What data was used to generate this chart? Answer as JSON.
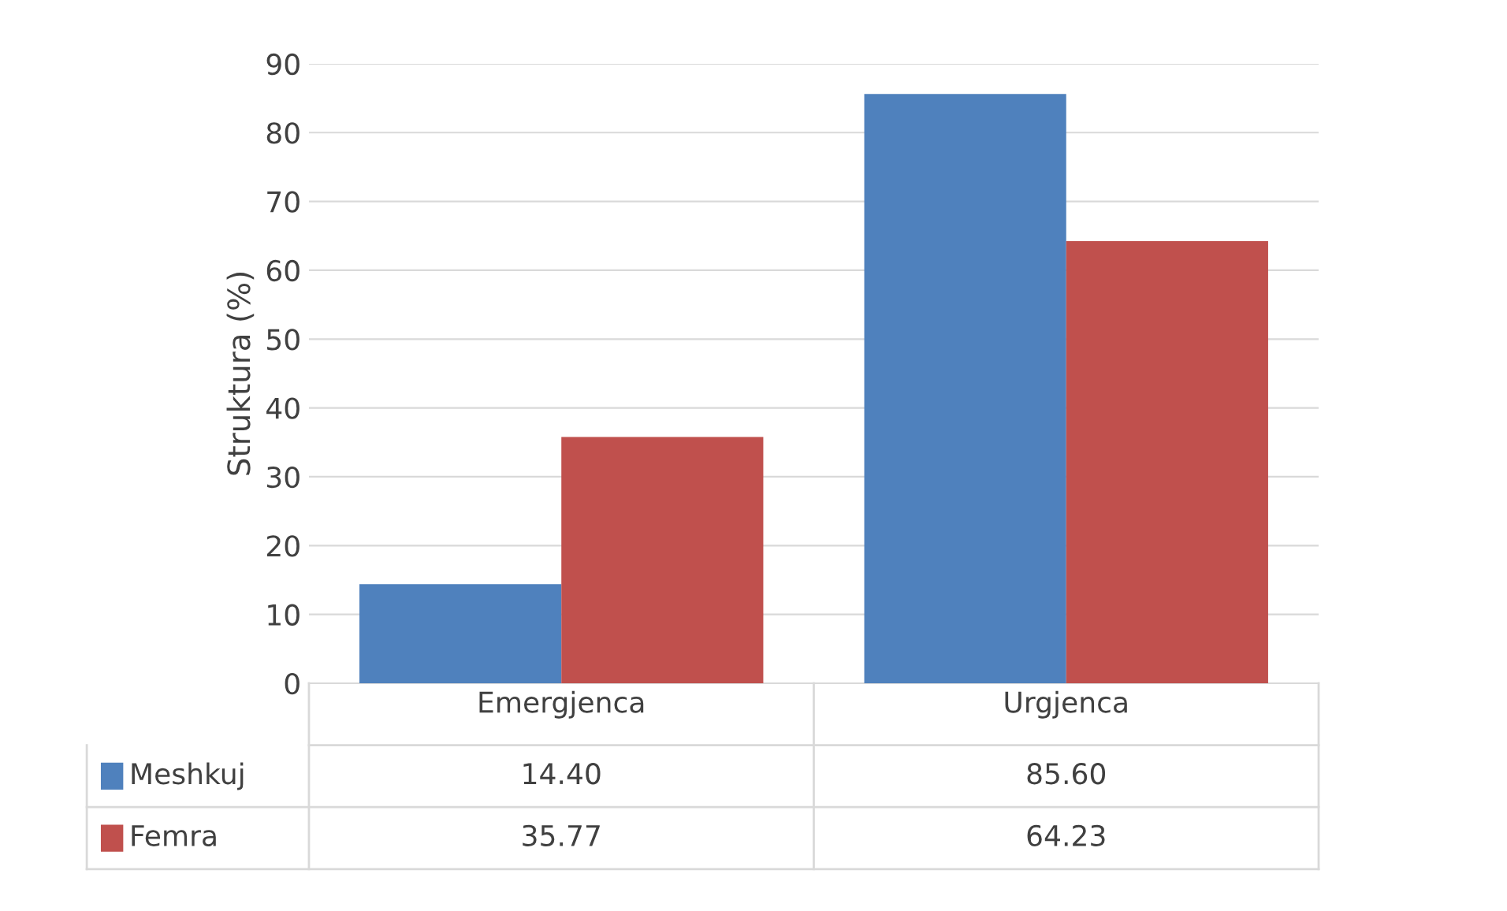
{
  "chart_data": {
    "type": "bar",
    "ylabel": "Struktura (%)",
    "categories": [
      "Emergjenca",
      "Urgjenca"
    ],
    "series": [
      {
        "name": "Meshkuj",
        "color": "#4f81bd",
        "values": [
          14.4,
          85.6
        ],
        "value_labels": [
          "14.40",
          "85.60"
        ]
      },
      {
        "name": "Femra",
        "color": "#c0504d",
        "values": [
          35.77,
          64.23
        ],
        "value_labels": [
          "35.77",
          "64.23"
        ]
      }
    ],
    "ylim": [
      0,
      90
    ],
    "yticks": [
      0,
      10,
      20,
      30,
      40,
      50,
      60,
      70,
      80,
      90
    ],
    "grid": "y",
    "legend": "bottom"
  }
}
